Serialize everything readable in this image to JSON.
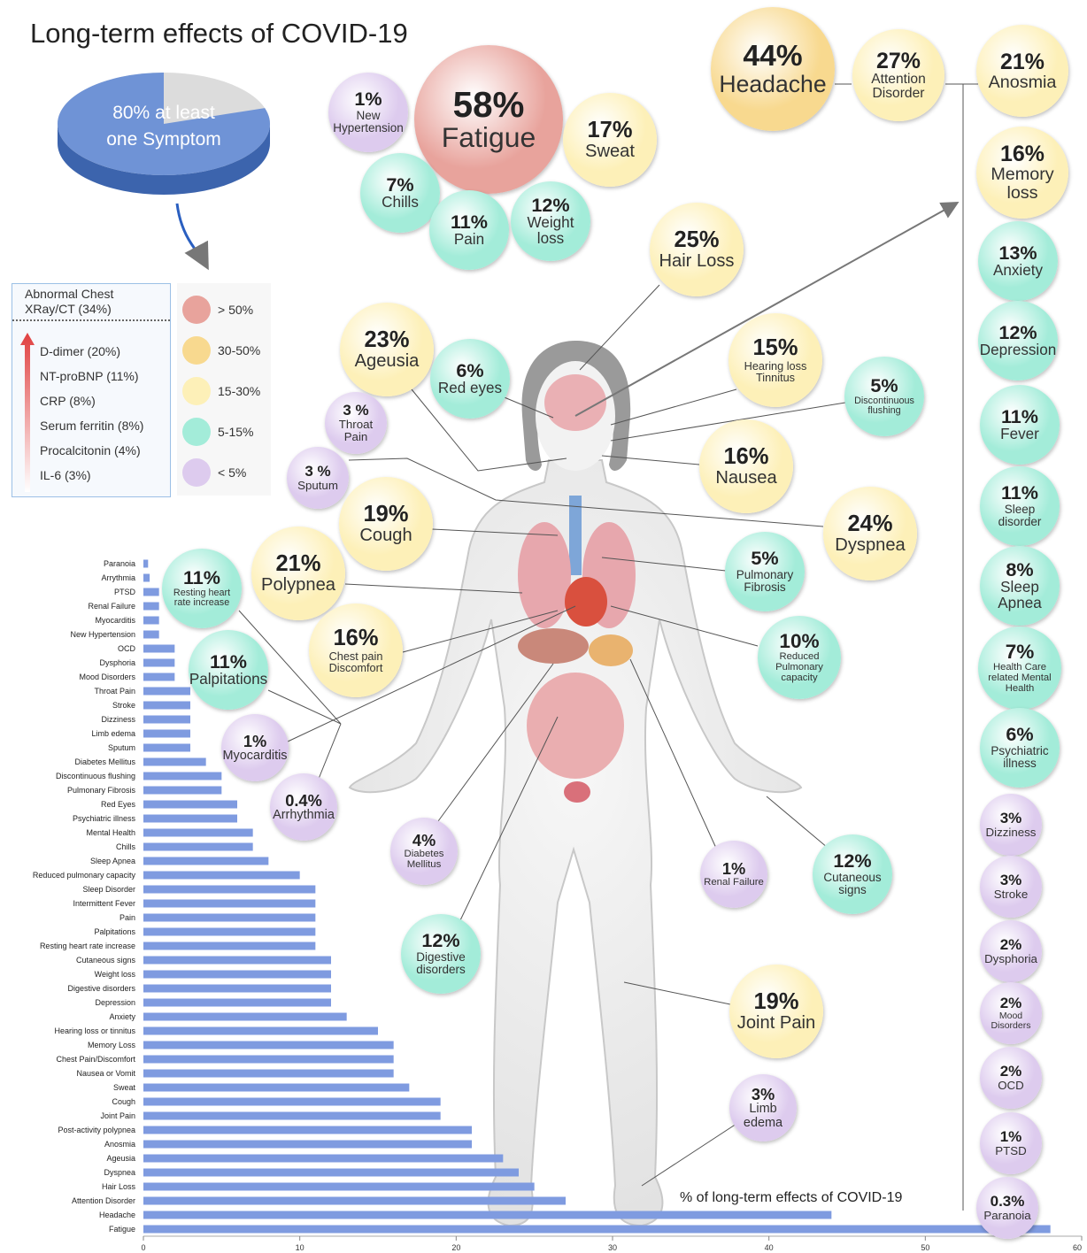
{
  "title": "Long-term effects of COVID-19",
  "pie": {
    "label": "80% at least one Symptom",
    "value": 80,
    "color": "#6f93d6"
  },
  "markers": {
    "title": "Abnormal Chest XRay/CT (34%)",
    "items": [
      "D-dimer (20%)",
      "NT-proBNP (11%)",
      "CRP (8%)",
      "Serum ferritin (8%)",
      "Procalcitonin (4%)",
      "IL-6 (3%)"
    ]
  },
  "legend": [
    {
      "label": "> 50%",
      "color": "#e8a39c"
    },
    {
      "label": "30-50%",
      "color": "#f8d98f"
    },
    {
      "label": "15-30%",
      "color": "#fdf0b8"
    },
    {
      "label": "5-15%",
      "color": "#a3ecd9"
    },
    {
      "label": "< 5%",
      "color": "#ddcbee"
    }
  ],
  "bubbles": [
    {
      "value": "58%",
      "label": "Fatigue",
      "color": "#e8a39c"
    },
    {
      "value": "1%",
      "label": "New Hypertension",
      "color": "#ddcbee"
    },
    {
      "value": "17%",
      "label": "Sweat",
      "color": "#fdf0b8"
    },
    {
      "value": "7%",
      "label": "Chills",
      "color": "#a3ecd9"
    },
    {
      "value": "11%",
      "label": "Pain",
      "color": "#a3ecd9"
    },
    {
      "value": "12%",
      "label": "Weight loss",
      "color": "#a3ecd9"
    },
    {
      "value": "44%",
      "label": "Headache",
      "color": "#f8d98f"
    },
    {
      "value": "27%",
      "label": "Attention Disorder",
      "color": "#fdf0b8"
    },
    {
      "value": "21%",
      "label": "Anosmia",
      "color": "#fdf0b8"
    },
    {
      "value": "16%",
      "label": "Memory loss",
      "color": "#fdf0b8"
    },
    {
      "value": "13%",
      "label": "Anxiety",
      "color": "#a3ecd9"
    },
    {
      "value": "12%",
      "label": "Depression",
      "color": "#a3ecd9"
    },
    {
      "value": "11%",
      "label": "Fever",
      "color": "#a3ecd9"
    },
    {
      "value": "11%",
      "label": "Sleep disorder",
      "color": "#a3ecd9"
    },
    {
      "value": "8%",
      "label": "Sleep Apnea",
      "color": "#a3ecd9"
    },
    {
      "value": "7%",
      "label": "Health Care related Mental Health",
      "color": "#a3ecd9"
    },
    {
      "value": "6%",
      "label": "Psychiatric illness",
      "color": "#a3ecd9"
    },
    {
      "value": "3%",
      "label": "Dizziness",
      "color": "#ddcbee"
    },
    {
      "value": "3%",
      "label": "Stroke",
      "color": "#ddcbee"
    },
    {
      "value": "2%",
      "label": "Dysphoria",
      "color": "#ddcbee"
    },
    {
      "value": "2%",
      "label": "Mood Disorders",
      "color": "#ddcbee"
    },
    {
      "value": "2%",
      "label": "OCD",
      "color": "#ddcbee"
    },
    {
      "value": "1%",
      "label": "PTSD",
      "color": "#ddcbee"
    },
    {
      "value": "0.3%",
      "label": "Paranoia",
      "color": "#ddcbee"
    },
    {
      "value": "25%",
      "label": "Hair Loss",
      "color": "#fdf0b8"
    },
    {
      "value": "23%",
      "label": "Ageusia",
      "color": "#fdf0b8"
    },
    {
      "value": "6%",
      "label": "Red eyes",
      "color": "#a3ecd9"
    },
    {
      "value": "15%",
      "label": "Hearing loss Tinnitus",
      "color": "#fdf0b8"
    },
    {
      "value": "5%",
      "label": "Discontinuous flushing",
      "color": "#a3ecd9"
    },
    {
      "value": "3 %",
      "label": "Throat Pain",
      "color": "#ddcbee"
    },
    {
      "value": "3 %",
      "label": "Sputum",
      "color": "#ddcbee"
    },
    {
      "value": "16%",
      "label": "Nausea",
      "color": "#fdf0b8"
    },
    {
      "value": "19%",
      "label": "Cough",
      "color": "#fdf0b8"
    },
    {
      "value": "24%",
      "label": "Dyspnea",
      "color": "#fdf0b8"
    },
    {
      "value": "21%",
      "label": "Polypnea",
      "color": "#fdf0b8"
    },
    {
      "value": "5%",
      "label": "Pulmonary Fibrosis",
      "color": "#a3ecd9"
    },
    {
      "value": "11%",
      "label": "Resting heart rate increase",
      "color": "#a3ecd9"
    },
    {
      "value": "16%",
      "label": "Chest pain Discomfort",
      "color": "#fdf0b8"
    },
    {
      "value": "10%",
      "label": "Reduced Pulmonary capacity",
      "color": "#a3ecd9"
    },
    {
      "value": "11%",
      "label": "Palpitations",
      "color": "#a3ecd9"
    },
    {
      "value": "1%",
      "label": "Myocarditis",
      "color": "#ddcbee"
    },
    {
      "value": "0.4%",
      "label": "Arrhythmia",
      "color": "#ddcbee"
    },
    {
      "value": "4%",
      "label": "Diabetes Mellitus",
      "color": "#ddcbee"
    },
    {
      "value": "1%",
      "label": "Renal Failure",
      "color": "#ddcbee"
    },
    {
      "value": "12%",
      "label": "Cutaneous signs",
      "color": "#a3ecd9"
    },
    {
      "value": "12%",
      "label": "Digestive disorders",
      "color": "#a3ecd9"
    },
    {
      "value": "19%",
      "label": "Joint Pain",
      "color": "#fdf0b8"
    },
    {
      "value": "3%",
      "label": "Limb edema",
      "color": "#ddcbee"
    }
  ],
  "chart_data": {
    "type": "bar",
    "x_label": "% of long-term effects of COVID-19",
    "color": "#7f9be0",
    "categories": [
      "Paranoia",
      "Arrythmia",
      "PTSD",
      "Renal Failure",
      "Myocarditis",
      "New Hypertension",
      "OCD",
      "Dysphoria",
      "Mood Disorders",
      "Throat Pain",
      "Stroke",
      "Dizziness",
      "Limb edema",
      "Sputum",
      "Diabetes Mellitus",
      "Discontinuous flushing",
      "Pulmonary Fibrosis",
      "Red Eyes",
      "Psychiatric illness",
      "Mental Health",
      "Chills",
      "Sleep Apnea",
      "Reduced pulmonary capacity",
      "Sleep Disorder",
      "Intermittent Fever",
      "Pain",
      "Palpitations",
      "Resting heart rate increase",
      "Cutaneous signs",
      "Weight loss",
      "Digestive disorders",
      "Depression",
      "Anxiety",
      "Hearing loss or tinnitus",
      "Memory Loss",
      "Chest Pain/Discomfort",
      "Nausea or Vomit",
      "Sweat",
      "Cough",
      "Joint Pain",
      "Post-activity polypnea",
      "Anosmia",
      "Ageusia",
      "Dyspnea",
      "Hair Loss",
      "Attention Disorder",
      "Headache",
      "Fatigue"
    ],
    "values": [
      0.3,
      0.4,
      1,
      1,
      1,
      1,
      2,
      2,
      2,
      3,
      3,
      3,
      3,
      3,
      4,
      5,
      5,
      6,
      6,
      7,
      7,
      8,
      10,
      11,
      11,
      11,
      11,
      11,
      12,
      12,
      12,
      12,
      13,
      15,
      16,
      16,
      16,
      17,
      19,
      19,
      21,
      21,
      23,
      24,
      25,
      27,
      44,
      58
    ],
    "xlim": [
      0,
      60
    ],
    "xticks": [
      0,
      10,
      20,
      30,
      40,
      50,
      60
    ]
  }
}
